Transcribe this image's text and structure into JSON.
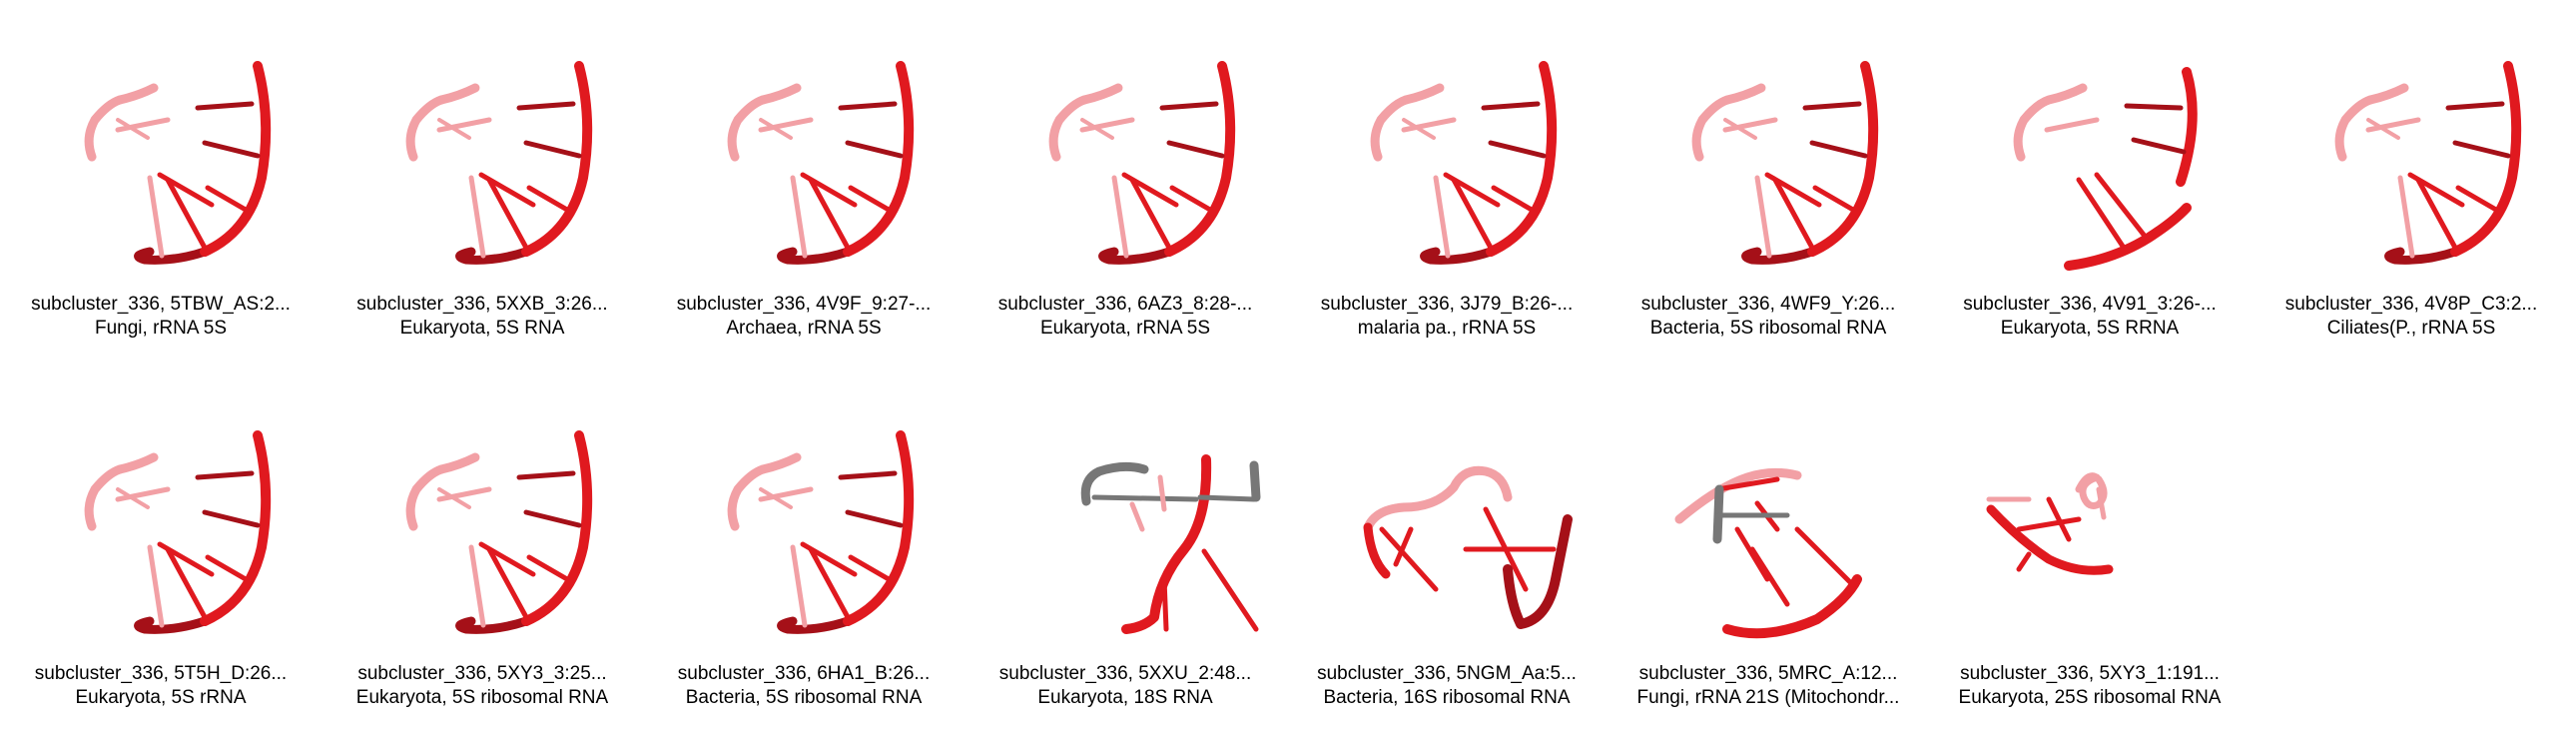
{
  "colors": {
    "strand": "#e0191f",
    "strand_dark": "#a51018",
    "strand_light": "#f2a0a5",
    "grey_strand": "#777777"
  },
  "items": [
    {
      "title": "subcluster_336, 5TBW_AS:2...",
      "subtitle": "Fungi, rRNA 5S",
      "shape": "helix"
    },
    {
      "title": "subcluster_336, 5XXB_3:26...",
      "subtitle": "Eukaryota, 5S RNA",
      "shape": "helix"
    },
    {
      "title": "subcluster_336, 4V9F_9:27-...",
      "subtitle": "Archaea, rRNA 5S",
      "shape": "helix"
    },
    {
      "title": "subcluster_336, 6AZ3_8:28-...",
      "subtitle": "Eukaryota, rRNA 5S",
      "shape": "helix"
    },
    {
      "title": "subcluster_336, 3J79_B:26-...",
      "subtitle": "malaria pa., rRNA 5S",
      "shape": "helix"
    },
    {
      "title": "subcluster_336, 4WF9_Y:26...",
      "subtitle": "Bacteria, 5S ribosomal RNA",
      "shape": "helix"
    },
    {
      "title": "subcluster_336, 4V91_3:26-...",
      "subtitle": "Eukaryota, 5S RRNA",
      "shape": "broken"
    },
    {
      "title": "subcluster_336, 4V8P_C3:2...",
      "subtitle": "Ciliates(P., rRNA 5S",
      "shape": "helix"
    },
    {
      "title": "subcluster_336, 5T5H_D:26...",
      "subtitle": "Eukaryota, 5S rRNA",
      "shape": "helix"
    },
    {
      "title": "subcluster_336, 5XY3_3:25...",
      "subtitle": "Eukaryota, 5S ribosomal RNA",
      "shape": "helix"
    },
    {
      "title": "subcluster_336, 6HA1_B:26...",
      "subtitle": "Bacteria, 5S ribosomal RNA",
      "shape": "helix"
    },
    {
      "title": "subcluster_336, 5XXU_2:48...",
      "subtitle": "Eukaryota, 18S RNA",
      "shape": "grey"
    },
    {
      "title": "subcluster_336, 5NGM_Aa:5...",
      "subtitle": "Bacteria, 16S ribosomal RNA",
      "shape": "loop"
    },
    {
      "title": "subcluster_336, 5MRC_A:12...",
      "subtitle": "Fungi, rRNA 21S (Mitochondr...",
      "shape": "greyloop"
    },
    {
      "title": "subcluster_336, 5XY3_1:191...",
      "subtitle": "Eukaryota, 25S ribosomal RNA",
      "shape": "twist"
    }
  ]
}
